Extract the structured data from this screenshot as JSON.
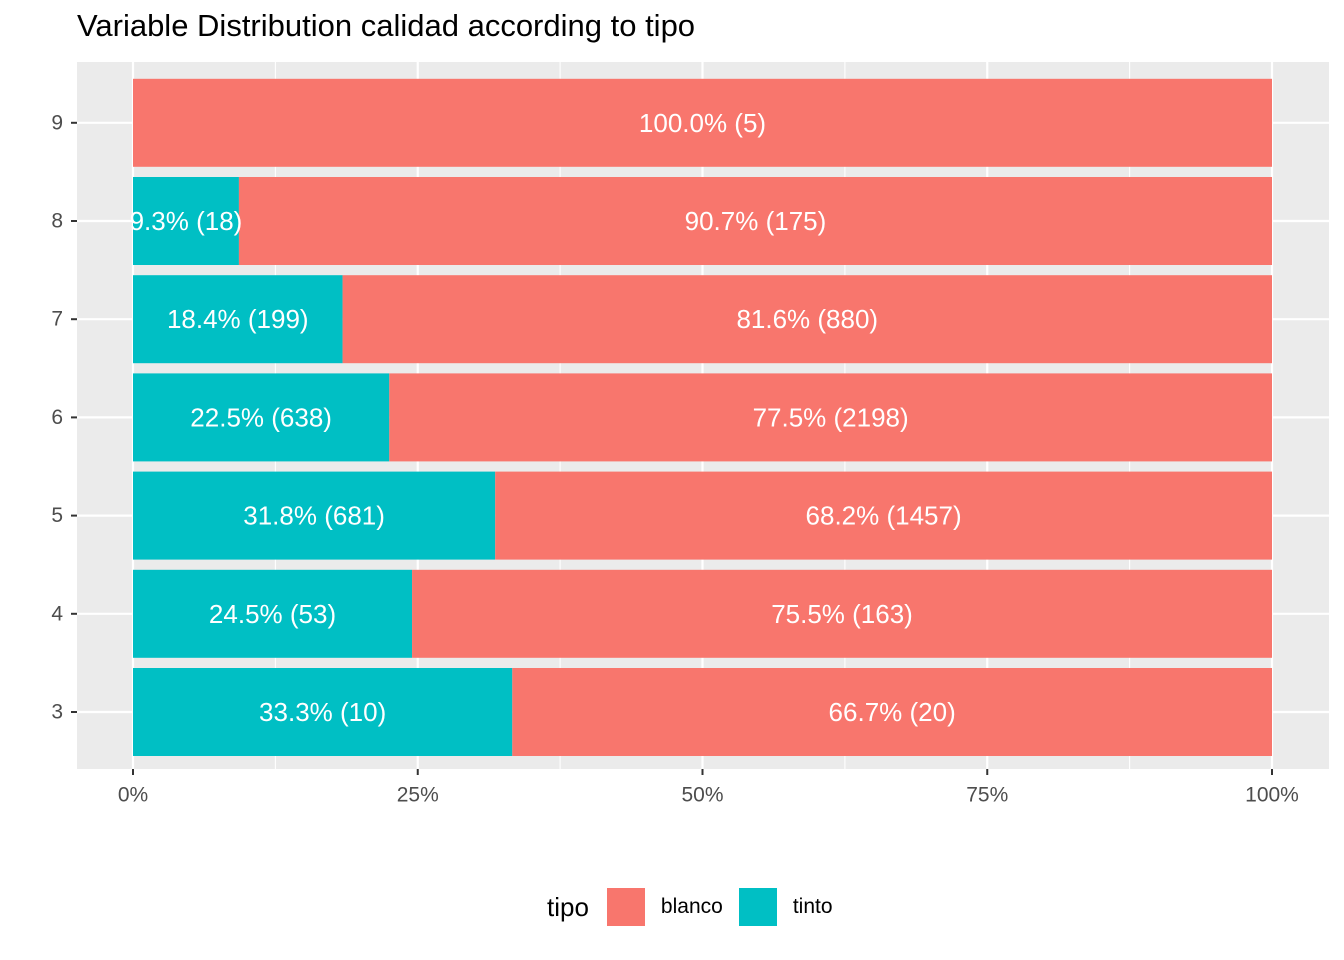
{
  "chart_data": {
    "type": "bar",
    "orientation": "horizontal",
    "stacked": "percent",
    "title": "Variable Distribution calidad according to tipo",
    "xlabel": "",
    "ylabel": "",
    "categories": [
      "3",
      "4",
      "5",
      "6",
      "7",
      "8",
      "9"
    ],
    "x_ticks": [
      "0%",
      "25%",
      "50%",
      "75%",
      "100%"
    ],
    "xlim": [
      0,
      100
    ],
    "grid": true,
    "legend": {
      "title": "tipo",
      "position": "bottom"
    },
    "series": [
      {
        "name": "tinto",
        "color": "#00BFC4",
        "percent": [
          33.3,
          24.5,
          31.8,
          22.5,
          18.4,
          9.3,
          0
        ],
        "counts": [
          10,
          53,
          681,
          638,
          199,
          18,
          0
        ],
        "labels": [
          "33.3% (10)",
          "24.5% (53)",
          "31.8% (681)",
          "22.5% (638)",
          "18.4% (199)",
          "9.3% (18)",
          ""
        ]
      },
      {
        "name": "blanco",
        "color": "#F8766D",
        "percent": [
          66.7,
          75.5,
          68.2,
          77.5,
          81.6,
          90.7,
          100.0
        ],
        "counts": [
          20,
          163,
          1457,
          2198,
          880,
          175,
          5
        ],
        "labels": [
          "66.7% (20)",
          "75.5% (163)",
          "68.2% (1457)",
          "77.5% (2198)",
          "81.6% (880)",
          "90.7% (175)",
          "100.0% (5)"
        ]
      }
    ]
  },
  "legend_items": [
    {
      "label": "blanco",
      "color": "#F8766D"
    },
    {
      "label": "tinto",
      "color": "#00BFC4"
    }
  ]
}
